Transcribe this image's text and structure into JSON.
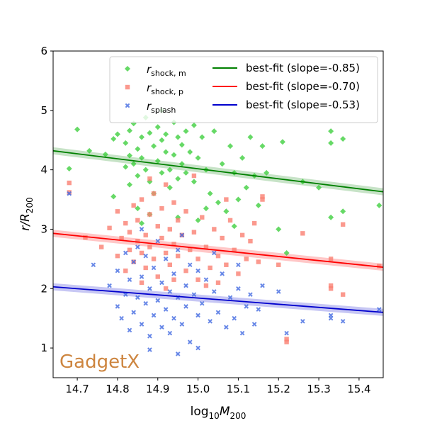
{
  "chart_data": {
    "type": "scatter",
    "title": "",
    "xlabel_base": "log",
    "xlabel_sub": "10",
    "xlabel_var": "M",
    "xlabel_varsub": "200",
    "ylabel_var": "r/R",
    "ylabel_sub": "200",
    "xlim": [
      14.64,
      15.46
    ],
    "ylim": [
      0.5,
      6.0
    ],
    "xticks": [
      "14.7",
      "14.8",
      "14.9",
      "15.0",
      "15.1",
      "15.2",
      "15.3",
      "15.4"
    ],
    "yticks": [
      "1",
      "2",
      "3",
      "4",
      "5",
      "6"
    ],
    "grid": false,
    "legend_position": "top-right",
    "annotation": "GadgetX",
    "annotation_color": "#cd853f",
    "series": [
      {
        "key": "shock_m",
        "label_var": "r",
        "label_sub": "shock, m",
        "marker": "diamond",
        "color": "#33cc33",
        "fit_label": "best-fit (slope=-0.85)",
        "fit_color": "#008000",
        "fit_slope": -0.85,
        "fit_line": [
          [
            14.64,
            4.32
          ],
          [
            15.46,
            3.63
          ]
        ],
        "fit_band": 0.06,
        "points": [
          [
            14.68,
            4.02
          ],
          [
            14.7,
            4.68
          ],
          [
            14.73,
            4.32
          ],
          [
            14.77,
            4.26
          ],
          [
            14.79,
            4.52
          ],
          [
            14.8,
            4.6
          ],
          [
            14.82,
            4.05
          ],
          [
            14.82,
            4.45
          ],
          [
            14.83,
            4.66
          ],
          [
            14.83,
            4.24
          ],
          [
            14.84,
            4.78
          ],
          [
            14.84,
            4.1
          ],
          [
            14.85,
            4.35
          ],
          [
            14.85,
            3.9
          ],
          [
            14.86,
            4.55
          ],
          [
            14.86,
            4.2
          ],
          [
            14.87,
            4.88
          ],
          [
            14.87,
            4.0
          ],
          [
            14.88,
            4.62
          ],
          [
            14.88,
            3.8
          ],
          [
            14.89,
            4.4
          ],
          [
            14.89,
            3.6
          ],
          [
            14.9,
            4.72
          ],
          [
            14.9,
            4.15
          ],
          [
            14.91,
            4.5
          ],
          [
            14.91,
            3.95
          ],
          [
            14.92,
            4.3
          ],
          [
            14.92,
            4.6
          ],
          [
            14.93,
            4.0
          ],
          [
            14.93,
            3.7
          ],
          [
            14.94,
            4.8
          ],
          [
            14.94,
            4.25
          ],
          [
            14.95,
            4.55
          ],
          [
            14.95,
            3.85
          ],
          [
            14.96,
            4.42
          ],
          [
            14.96,
            4.1
          ],
          [
            14.97,
            4.65
          ],
          [
            14.97,
            3.95
          ],
          [
            14.98,
            4.3
          ],
          [
            14.99,
            4.75
          ],
          [
            14.99,
            3.8
          ],
          [
            15.0,
            4.2
          ],
          [
            15.01,
            4.55
          ],
          [
            15.02,
            4.0
          ],
          [
            15.03,
            3.6
          ],
          [
            15.04,
            4.65
          ],
          [
            15.05,
            3.45
          ],
          [
            15.06,
            4.1
          ],
          [
            15.07,
            3.3
          ],
          [
            15.08,
            4.4
          ],
          [
            15.09,
            3.95
          ],
          [
            15.1,
            3.5
          ],
          [
            15.11,
            4.2
          ],
          [
            15.12,
            3.7
          ],
          [
            15.13,
            4.55
          ],
          [
            15.14,
            3.9
          ],
          [
            15.15,
            3.4
          ],
          [
            15.16,
            4.4
          ],
          [
            15.17,
            3.95
          ],
          [
            15.2,
            3.0
          ],
          [
            15.21,
            4.47
          ],
          [
            15.22,
            2.6
          ],
          [
            15.26,
            3.8
          ],
          [
            15.3,
            3.7
          ],
          [
            15.33,
            4.65
          ],
          [
            15.33,
            4.45
          ],
          [
            15.33,
            3.2
          ],
          [
            15.36,
            4.52
          ],
          [
            15.36,
            3.3
          ],
          [
            15.45,
            3.4
          ],
          [
            14.79,
            3.55
          ],
          [
            14.83,
            3.75
          ],
          [
            14.85,
            3.35
          ],
          [
            14.88,
            3.25
          ],
          [
            14.95,
            3.2
          ],
          [
            15.0,
            3.15
          ],
          [
            15.02,
            3.35
          ],
          [
            15.09,
            3.05
          ],
          [
            14.91,
            5.0
          ],
          [
            14.86,
            3.1
          ]
        ]
      },
      {
        "key": "shock_p",
        "label_var": "r",
        "label_sub": "shock, p",
        "marker": "square",
        "color": "#fa8072",
        "fit_label": "best-fit (slope=-0.70)",
        "fit_color": "#ff0000",
        "fit_slope": -0.7,
        "fit_line": [
          [
            14.64,
            2.93
          ],
          [
            15.46,
            2.36
          ]
        ],
        "fit_band": 0.06,
        "points": [
          [
            14.68,
            3.78
          ],
          [
            14.68,
            3.62
          ],
          [
            14.72,
            2.86
          ],
          [
            14.76,
            2.7
          ],
          [
            14.78,
            3.02
          ],
          [
            14.8,
            2.55
          ],
          [
            14.8,
            3.3
          ],
          [
            14.81,
            2.85
          ],
          [
            14.82,
            2.3
          ],
          [
            14.82,
            3.1
          ],
          [
            14.83,
            2.65
          ],
          [
            14.83,
            2.95
          ],
          [
            14.84,
            3.4
          ],
          [
            14.84,
            2.45
          ],
          [
            14.85,
            2.8
          ],
          [
            14.85,
            3.15
          ],
          [
            14.86,
            2.6
          ],
          [
            14.86,
            3.5
          ],
          [
            14.87,
            2.9
          ],
          [
            14.87,
            2.35
          ],
          [
            14.88,
            3.25
          ],
          [
            14.88,
            2.7
          ],
          [
            14.89,
            3.6
          ],
          [
            14.89,
            2.5
          ],
          [
            14.9,
            3.05
          ],
          [
            14.9,
            2.2
          ],
          [
            14.91,
            2.85
          ],
          [
            14.91,
            3.35
          ],
          [
            14.92,
            2.6
          ],
          [
            14.92,
            3.75
          ],
          [
            14.93,
            2.4
          ],
          [
            14.93,
            3.0
          ],
          [
            14.94,
            2.75
          ],
          [
            14.94,
            3.45
          ],
          [
            14.95,
            2.55
          ],
          [
            14.95,
            3.15
          ],
          [
            14.96,
            2.9
          ],
          [
            14.97,
            2.3
          ],
          [
            14.97,
            3.3
          ],
          [
            14.98,
            2.65
          ],
          [
            14.99,
            2.95
          ],
          [
            15.0,
            2.5
          ],
          [
            15.01,
            3.2
          ],
          [
            15.02,
            2.7
          ],
          [
            15.03,
            2.35
          ],
          [
            15.04,
            3.0
          ],
          [
            15.05,
            2.55
          ],
          [
            15.06,
            2.85
          ],
          [
            15.07,
            2.4
          ],
          [
            15.08,
            3.15
          ],
          [
            15.09,
            2.65
          ],
          [
            15.1,
            2.25
          ],
          [
            15.11,
            2.9
          ],
          [
            15.12,
            2.5
          ],
          [
            15.13,
            2.8
          ],
          [
            15.14,
            3.1
          ],
          [
            15.15,
            2.45
          ],
          [
            15.16,
            3.55
          ],
          [
            15.16,
            3.5
          ],
          [
            15.2,
            2.4
          ],
          [
            15.22,
            1.15
          ],
          [
            15.22,
            1.1
          ],
          [
            15.26,
            2.93
          ],
          [
            15.33,
            2.5
          ],
          [
            15.33,
            2.05
          ],
          [
            15.33,
            2.0
          ],
          [
            15.36,
            3.08
          ],
          [
            15.36,
            1.9
          ],
          [
            15.45,
            2.38
          ],
          [
            14.86,
            2.1
          ],
          [
            14.94,
            2.15
          ],
          [
            15.0,
            2.15
          ],
          [
            15.05,
            2.1
          ],
          [
            14.88,
            3.85
          ],
          [
            14.99,
            3.9
          ],
          [
            15.07,
            3.5
          ],
          [
            14.92,
            2.0
          ],
          [
            15.02,
            2.05
          ]
        ]
      },
      {
        "key": "splash",
        "label_var": "r",
        "label_sub": "splash",
        "marker": "x",
        "color": "#4169e1",
        "fit_label": "best-fit (slope=-0.53)",
        "fit_color": "#0000cd",
        "fit_slope": -0.53,
        "fit_line": [
          [
            14.64,
            2.03
          ],
          [
            15.46,
            1.6
          ]
        ],
        "fit_band": 0.06,
        "points": [
          [
            14.68,
            3.6
          ],
          [
            14.74,
            2.4
          ],
          [
            14.78,
            2.05
          ],
          [
            14.8,
            1.7
          ],
          [
            14.8,
            2.3
          ],
          [
            14.81,
            1.5
          ],
          [
            14.82,
            2.6
          ],
          [
            14.82,
            1.9
          ],
          [
            14.83,
            1.3
          ],
          [
            14.83,
            2.15
          ],
          [
            14.84,
            2.45
          ],
          [
            14.84,
            1.6
          ],
          [
            14.85,
            1.85
          ],
          [
            14.85,
            2.7
          ],
          [
            14.86,
            1.4
          ],
          [
            14.86,
            2.2
          ],
          [
            14.87,
            1.75
          ],
          [
            14.87,
            2.55
          ],
          [
            14.88,
            1.2
          ],
          [
            14.88,
            2.0
          ],
          [
            14.89,
            1.55
          ],
          [
            14.89,
            2.35
          ],
          [
            14.9,
            1.8
          ],
          [
            14.9,
            2.8
          ],
          [
            14.91,
            1.35
          ],
          [
            14.91,
            2.1
          ],
          [
            14.92,
            1.65
          ],
          [
            14.92,
            2.5
          ],
          [
            14.93,
            1.95
          ],
          [
            14.93,
            1.25
          ],
          [
            14.94,
            2.25
          ],
          [
            14.94,
            1.5
          ],
          [
            14.95,
            1.85
          ],
          [
            14.95,
            2.65
          ],
          [
            14.96,
            1.4
          ],
          [
            14.97,
            2.05
          ],
          [
            14.97,
            1.7
          ],
          [
            14.98,
            2.4
          ],
          [
            14.98,
            1.1
          ],
          [
            14.99,
            1.9
          ],
          [
            15.0,
            1.55
          ],
          [
            15.0,
            2.3
          ],
          [
            15.01,
            1.75
          ],
          [
            15.02,
            2.15
          ],
          [
            15.03,
            1.45
          ],
          [
            15.04,
            1.95
          ],
          [
            15.05,
            1.6
          ],
          [
            15.06,
            2.25
          ],
          [
            15.07,
            1.35
          ],
          [
            15.08,
            1.85
          ],
          [
            15.09,
            1.5
          ],
          [
            15.1,
            2.0
          ],
          [
            15.11,
            1.25
          ],
          [
            15.12,
            1.7
          ],
          [
            15.13,
            1.9
          ],
          [
            15.14,
            1.4
          ],
          [
            15.15,
            1.65
          ],
          [
            15.16,
            2.05
          ],
          [
            15.2,
            1.95
          ],
          [
            15.22,
            1.25
          ],
          [
            15.26,
            1.45
          ],
          [
            15.33,
            1.55
          ],
          [
            15.33,
            1.5
          ],
          [
            15.36,
            1.45
          ],
          [
            15.45,
            1.65
          ],
          [
            14.95,
            0.9
          ],
          [
            14.88,
            0.97
          ],
          [
            15.0,
            1.0
          ],
          [
            14.86,
            3.0
          ],
          [
            14.96,
            2.9
          ],
          [
            15.04,
            2.6
          ],
          [
            15.1,
            2.4
          ]
        ]
      }
    ]
  }
}
